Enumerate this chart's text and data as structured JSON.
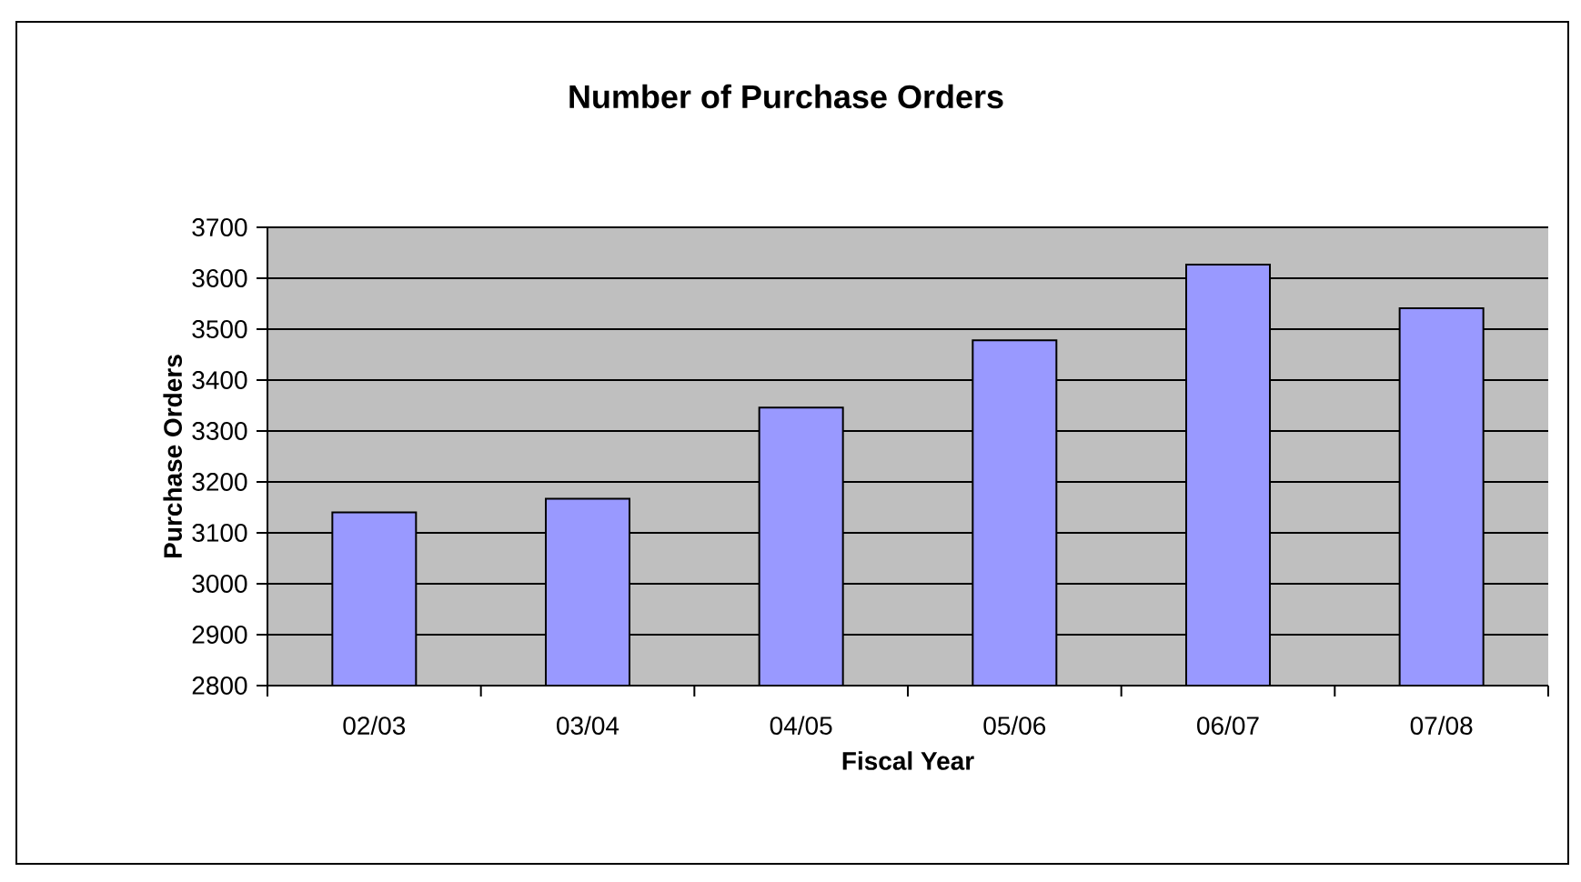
{
  "chart_data": {
    "type": "bar",
    "title": "Number of Purchase Orders",
    "xlabel": "Fiscal Year",
    "ylabel": "Purchase Orders",
    "categories": [
      "02/03",
      "03/04",
      "04/05",
      "05/06",
      "06/07",
      "07/08"
    ],
    "values": [
      3140,
      3167,
      3346,
      3478,
      3627,
      3541
    ],
    "color": "#9999ff",
    "ylim": [
      2800,
      3700
    ],
    "yticks": [
      2800,
      2900,
      3000,
      3100,
      3200,
      3300,
      3400,
      3500,
      3600,
      3700
    ],
    "grid": "y"
  }
}
